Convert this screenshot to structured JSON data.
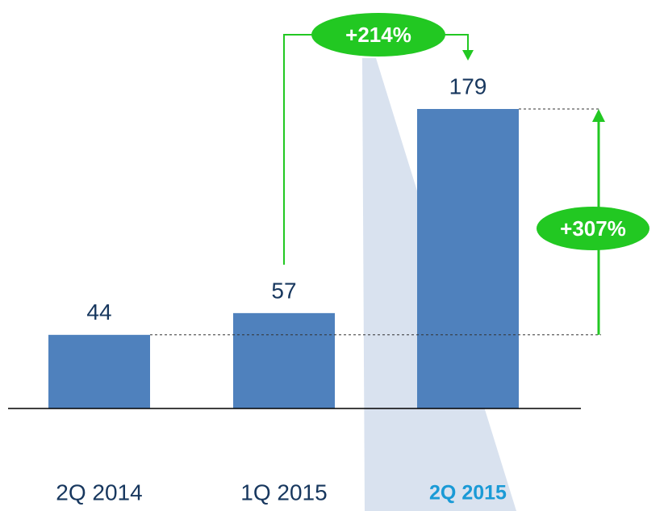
{
  "chart_data": {
    "type": "bar",
    "categories": [
      "2Q 2014",
      "1Q 2015",
      "2Q 2015"
    ],
    "values": [
      44,
      57,
      179
    ],
    "color": "#4f81bd",
    "highlight": {
      "index": 2,
      "color": "#1a9ad6"
    },
    "annotations": [
      "+214%",
      "+307%"
    ],
    "annotation_color": "#22c822"
  }
}
